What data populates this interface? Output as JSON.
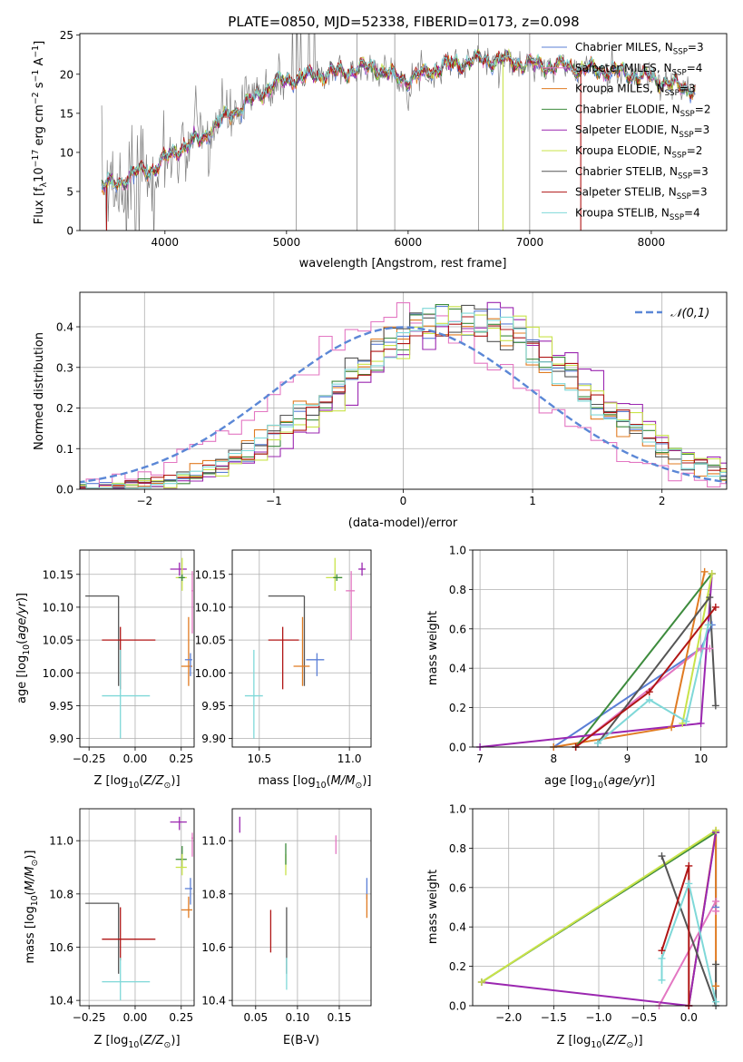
{
  "figure_title": "PLATE=0850, MJD=52338, FIBERID=0173, z=0.098",
  "colors": {
    "Chabrier MILES": "#5b7fd6",
    "Salpeter MILES": "#e377c2",
    "Kroupa MILES": "#e07b22",
    "Chabrier ELODIE": "#3d8b3d",
    "Salpeter ELODIE": "#9b27b0",
    "Kroupa ELODIE": "#c9e34a",
    "Chabrier STELIB": "#555555",
    "Salpeter STELIB": "#b01515",
    "Kroupa STELIB": "#7fd8d8",
    "data": "#7f7f7f",
    "normal": "#5b87d6"
  },
  "chart_data": [
    {
      "id": "spectrum",
      "type": "line",
      "title": "PLATE=0850, MJD=52338, FIBERID=0173, z=0.098",
      "xlabel": "wavelength [Angstrom, rest frame]",
      "ylabel": "Flux [f_λ 10^-17 erg cm^-2 s^-1 A^-1]",
      "xlim": [
        3300,
        8620
      ],
      "ylim": [
        0,
        25.2
      ],
      "xticks": [
        4000,
        5000,
        6000,
        7000,
        8000
      ],
      "yticks": [
        0,
        5,
        10,
        15,
        20,
        25
      ],
      "grid": false,
      "legend_position": "right",
      "legend": [
        "Chabrier MILES, N_SSP=3",
        "Salpeter MILES, N_SSP=4",
        "Kroupa MILES, N_SSP=3",
        "Chabrier ELODIE, N_SSP=2",
        "Salpeter ELODIE, N_SSP=3",
        "Kroupa ELODIE, N_SSP=2",
        "Chabrier STELIB, N_SSP=3",
        "Salpeter STELIB, N_SSP=3",
        "Kroupa STELIB, N_SSP=4"
      ],
      "continuum_points": [
        [
          3480,
          5.8
        ],
        [
          3600,
          6.0
        ],
        [
          3750,
          7.3
        ],
        [
          3900,
          7.8
        ],
        [
          4000,
          9.0
        ],
        [
          4100,
          10.3
        ],
        [
          4300,
          11.8
        ],
        [
          4500,
          14.5
        ],
        [
          4700,
          16.5
        ],
        [
          4900,
          18.8
        ],
        [
          5100,
          19.5
        ],
        [
          5300,
          20.0
        ],
        [
          5500,
          20.3
        ],
        [
          5700,
          21.0
        ],
        [
          5900,
          19.6
        ],
        [
          6000,
          19.3
        ],
        [
          6300,
          21.1
        ],
        [
          6600,
          21.9
        ],
        [
          6900,
          21.5
        ],
        [
          7100,
          21.2
        ],
        [
          7400,
          20.8
        ],
        [
          7700,
          20.3
        ],
        [
          8000,
          19.5
        ],
        [
          8200,
          18.5
        ],
        [
          8360,
          18.0
        ]
      ],
      "noise_spikes": [
        5080,
        5580,
        5890,
        6580,
        7000
      ],
      "model_dropouts": [
        [
          3520,
          "Salpeter STELIB"
        ],
        [
          6780,
          "Kroupa ELODIE"
        ],
        [
          7420,
          "Salpeter STELIB"
        ]
      ]
    },
    {
      "id": "residuals",
      "type": "histogram",
      "xlabel": "(data-model)/error",
      "ylabel": "Normed distribution",
      "xlim": [
        -2.5,
        2.5
      ],
      "ylim": [
        0,
        0.485
      ],
      "xticks": [
        -2,
        -1,
        0,
        1,
        2
      ],
      "yticks": [
        0.0,
        0.1,
        0.2,
        0.3,
        0.4
      ],
      "grid": true,
      "legend_position": "top-right",
      "legend": "𝒩(0,1)",
      "normal_curve": {
        "mean": 0,
        "sigma": 1
      }
    },
    {
      "id": "age-vs-Z",
      "type": "errorbar",
      "xlabel": "Z [log10(Z/Z⊙)]",
      "ylabel": "age  [log10(age/yr)]",
      "xlim": [
        -0.3,
        0.32
      ],
      "ylim": [
        9.887,
        10.187
      ],
      "xticks": [
        -0.25,
        0.0,
        0.25
      ],
      "xtick_labels": [
        "−0.25",
        "0.00",
        "0.25"
      ],
      "yticks": [
        9.9,
        9.95,
        10.0,
        10.05,
        10.1,
        10.15
      ],
      "grid": true,
      "points": [
        {
          "model": "Chabrier STELIB",
          "x": -0.09,
          "y": 10.117,
          "xlo": -0.27,
          "xhi": -0.09,
          "ylo": 9.98,
          "yhi": 10.117
        },
        {
          "model": "Salpeter STELIB",
          "x": -0.08,
          "y": 10.05,
          "xlo": -0.18,
          "xhi": 0.11,
          "ylo": 9.975,
          "yhi": 10.07
        },
        {
          "model": "Kroupa STELIB",
          "x": -0.08,
          "y": 9.965,
          "xlo": -0.18,
          "xhi": 0.08,
          "ylo": 9.9,
          "yhi": 10.035
        },
        {
          "model": "Salpeter ELODIE",
          "x": 0.24,
          "y": 10.158,
          "xlo": 0.19,
          "xhi": 0.28,
          "ylo": 10.148,
          "yhi": 10.168
        },
        {
          "model": "Kroupa ELODIE",
          "x": 0.255,
          "y": 10.145,
          "xlo": 0.22,
          "xhi": 0.28,
          "ylo": 10.125,
          "yhi": 10.175
        },
        {
          "model": "Chabrier ELODIE",
          "x": 0.255,
          "y": 10.145,
          "xlo": 0.235,
          "xhi": 0.27,
          "ylo": 10.14,
          "yhi": 10.15
        },
        {
          "model": "Salpeter MILES",
          "x": 0.31,
          "y": 10.125,
          "xlo": 0.305,
          "xhi": 0.315,
          "ylo": 10.06,
          "yhi": 10.155
        },
        {
          "model": "Kroupa MILES",
          "x": 0.29,
          "y": 10.01,
          "xlo": 0.25,
          "xhi": 0.31,
          "ylo": 9.98,
          "yhi": 10.085
        },
        {
          "model": "Chabrier MILES",
          "x": 0.3,
          "y": 10.02,
          "xlo": 0.27,
          "xhi": 0.31,
          "ylo": 9.995,
          "yhi": 10.03
        }
      ]
    },
    {
      "id": "age-vs-mass",
      "type": "errorbar",
      "xlabel": "mass [log10(M/M⊙)]",
      "ylabel": "",
      "xlim": [
        10.35,
        11.12
      ],
      "ylim": [
        9.887,
        10.187
      ],
      "xticks": [
        10.5,
        11.0
      ],
      "yticks": [
        9.9,
        9.95,
        10.0,
        10.05,
        10.1,
        10.15
      ],
      "grid": true,
      "points": [
        {
          "model": "Chabrier STELIB",
          "x": 10.75,
          "y": 10.117,
          "xlo": 10.55,
          "xhi": 10.75,
          "ylo": 9.98,
          "yhi": 10.117
        },
        {
          "model": "Salpeter STELIB",
          "x": 10.63,
          "y": 10.05,
          "xlo": 10.55,
          "xhi": 10.72,
          "ylo": 9.975,
          "yhi": 10.07
        },
        {
          "model": "Kroupa STELIB",
          "x": 10.47,
          "y": 9.965,
          "xlo": 10.42,
          "xhi": 10.52,
          "ylo": 9.9,
          "yhi": 10.035
        },
        {
          "model": "Kroupa MILES",
          "x": 10.74,
          "y": 10.01,
          "xlo": 10.69,
          "xhi": 10.78,
          "ylo": 9.98,
          "yhi": 10.085
        },
        {
          "model": "Chabrier MILES",
          "x": 10.82,
          "y": 10.02,
          "xlo": 10.76,
          "xhi": 10.86,
          "ylo": 9.995,
          "yhi": 10.03
        },
        {
          "model": "Kroupa ELODIE",
          "x": 10.92,
          "y": 10.145,
          "xlo": 10.87,
          "xhi": 10.96,
          "ylo": 10.125,
          "yhi": 10.175
        },
        {
          "model": "Chabrier ELODIE",
          "x": 10.93,
          "y": 10.145,
          "xlo": 10.91,
          "xhi": 10.96,
          "ylo": 10.14,
          "yhi": 10.15
        },
        {
          "model": "Salpeter MILES",
          "x": 11.01,
          "y": 10.125,
          "xlo": 10.98,
          "xhi": 11.03,
          "ylo": 10.05,
          "yhi": 10.155
        },
        {
          "model": "Salpeter ELODIE",
          "x": 11.07,
          "y": 10.158,
          "xlo": 11.05,
          "xhi": 11.09,
          "ylo": 10.148,
          "yhi": 10.168
        }
      ]
    },
    {
      "id": "mass-weight-vs-age",
      "type": "line",
      "xlabel": "age  [log10(age/yr)]",
      "ylabel": "mass weight",
      "xlim": [
        6.9,
        10.35
      ],
      "ylim": [
        0,
        1.0
      ],
      "xticks": [
        7,
        8,
        9,
        10
      ],
      "yticks": [
        0.0,
        0.2,
        0.4,
        0.6,
        0.8,
        1.0
      ],
      "grid": true,
      "series": [
        {
          "model": "Chabrier MILES",
          "points": [
            [
              8.0,
              0.0
            ],
            [
              10.0,
              0.5
            ],
            [
              10.15,
              0.62
            ]
          ]
        },
        {
          "model": "Salpeter MILES",
          "points": [
            [
              8.3,
              0.0
            ],
            [
              10.0,
              0.5
            ],
            [
              10.12,
              0.5
            ]
          ]
        },
        {
          "model": "Kroupa MILES",
          "points": [
            [
              8.0,
              0.0
            ],
            [
              9.6,
              0.1
            ],
            [
              10.05,
              0.89
            ]
          ]
        },
        {
          "model": "Chabrier ELODIE",
          "points": [
            [
              8.3,
              0.0
            ],
            [
              10.15,
              0.88
            ]
          ]
        },
        {
          "model": "Salpeter ELODIE",
          "points": [
            [
              7.0,
              0.0
            ],
            [
              10.0,
              0.12
            ],
            [
              10.15,
              0.88
            ]
          ]
        },
        {
          "model": "Kroupa ELODIE",
          "points": [
            [
              9.75,
              0.12
            ],
            [
              10.15,
              0.88
            ]
          ]
        },
        {
          "model": "Chabrier STELIB",
          "points": [
            [
              8.6,
              0.02
            ],
            [
              10.12,
              0.76
            ],
            [
              10.2,
              0.21
            ]
          ]
        },
        {
          "model": "Salpeter STELIB",
          "points": [
            [
              8.3,
              0.0
            ],
            [
              9.3,
              0.28
            ],
            [
              10.2,
              0.71
            ]
          ]
        },
        {
          "model": "Kroupa STELIB",
          "points": [
            [
              8.6,
              0.02
            ],
            [
              9.3,
              0.24
            ],
            [
              9.8,
              0.13
            ],
            [
              10.1,
              0.62
            ]
          ]
        }
      ]
    },
    {
      "id": "mass-vs-Z",
      "type": "errorbar",
      "xlabel": "Z [log10(Z/Z⊙)]",
      "ylabel": "mass [log10(M/M⊙)]",
      "xlim": [
        -0.3,
        0.32
      ],
      "ylim": [
        10.38,
        11.12
      ],
      "xticks": [
        -0.25,
        0.0,
        0.25
      ],
      "xtick_labels": [
        "−0.25",
        "0.00",
        "0.25"
      ],
      "yticks": [
        10.4,
        10.6,
        10.8,
        11.0
      ],
      "grid": true,
      "points": [
        {
          "model": "Chabrier STELIB",
          "x": -0.09,
          "y": 10.765,
          "xlo": -0.27,
          "xhi": -0.09,
          "ylo": 10.5,
          "yhi": 10.765
        },
        {
          "model": "Salpeter STELIB",
          "x": -0.08,
          "y": 10.63,
          "xlo": -0.18,
          "xhi": 0.11,
          "ylo": 10.55,
          "yhi": 10.75
        },
        {
          "model": "Kroupa STELIB",
          "x": -0.08,
          "y": 10.47,
          "xlo": -0.18,
          "xhi": 0.08,
          "ylo": 10.4,
          "yhi": 10.56
        },
        {
          "model": "Salpeter ELODIE",
          "x": 0.24,
          "y": 11.07,
          "xlo": 0.19,
          "xhi": 0.28,
          "ylo": 11.04,
          "yhi": 11.09
        },
        {
          "model": "Chabrier ELODIE",
          "x": 0.255,
          "y": 10.93,
          "xlo": 0.22,
          "xhi": 0.28,
          "ylo": 10.9,
          "yhi": 10.98
        },
        {
          "model": "Kroupa ELODIE",
          "x": 0.255,
          "y": 10.9,
          "xlo": 0.22,
          "xhi": 0.28,
          "ylo": 10.87,
          "yhi": 10.95
        },
        {
          "model": "Salpeter MILES",
          "x": 0.31,
          "y": 11.01,
          "xlo": 0.305,
          "xhi": 0.315,
          "ylo": 10.94,
          "yhi": 11.03
        },
        {
          "model": "Chabrier MILES",
          "x": 0.3,
          "y": 10.82,
          "xlo": 0.27,
          "xhi": 0.31,
          "ylo": 10.76,
          "yhi": 10.86
        },
        {
          "model": "Kroupa MILES",
          "x": 0.29,
          "y": 10.74,
          "xlo": 0.25,
          "xhi": 0.31,
          "ylo": 10.71,
          "yhi": 10.79
        }
      ]
    },
    {
      "id": "mass-vs-EBV",
      "type": "errorbar",
      "xlabel": "E(B-V)",
      "ylabel": "",
      "xlim": [
        0.022,
        0.188
      ],
      "ylim": [
        10.38,
        11.12
      ],
      "xticks": [
        0.05,
        0.1,
        0.15
      ],
      "yticks": [
        10.4,
        10.6,
        10.8,
        11.0
      ],
      "grid": true,
      "points": [
        {
          "model": "Salpeter ELODIE",
          "x": 0.031,
          "y": 11.06,
          "ylo": 11.03,
          "yhi": 11.09
        },
        {
          "model": "Salpeter STELIB",
          "x": 0.068,
          "y": 10.63,
          "ylo": 10.58,
          "yhi": 10.74
        },
        {
          "model": "Chabrier STELIB",
          "x": 0.087,
          "y": 10.6,
          "ylo": 10.5,
          "yhi": 10.75
        },
        {
          "model": "Kroupa STELIB",
          "x": 0.087,
          "y": 10.47,
          "ylo": 10.44,
          "yhi": 10.56
        },
        {
          "model": "Kroupa ELODIE",
          "x": 0.086,
          "y": 10.93,
          "ylo": 10.87,
          "yhi": 10.95
        },
        {
          "model": "Chabrier ELODIE",
          "x": 0.086,
          "y": 10.96,
          "ylo": 10.91,
          "yhi": 10.99
        },
        {
          "model": "Salpeter MILES",
          "x": 0.146,
          "y": 11.0,
          "ylo": 10.95,
          "yhi": 11.02
        },
        {
          "model": "Chabrier MILES",
          "x": 0.183,
          "y": 10.82,
          "ylo": 10.78,
          "yhi": 10.86
        },
        {
          "model": "Kroupa MILES",
          "x": 0.183,
          "y": 10.76,
          "ylo": 10.71,
          "yhi": 10.8
        }
      ]
    },
    {
      "id": "mass-weight-vs-Z",
      "type": "line",
      "xlabel": "Z [log10(Z/Z⊙)]",
      "ylabel": "mass weight",
      "xlim": [
        -2.4,
        0.42
      ],
      "ylim": [
        0,
        1.0
      ],
      "xticks": [
        -2.0,
        -1.5,
        -1.0,
        -0.5,
        0.0
      ],
      "xtick_labels": [
        "−2.0",
        "−1.5",
        "−1.0",
        "−0.5",
        "0.0"
      ],
      "yticks": [
        0.0,
        0.2,
        0.4,
        0.6,
        0.8,
        1.0
      ],
      "grid": true,
      "series": [
        {
          "model": "Chabrier MILES",
          "points": [
            [
              0.0,
              0.0
            ],
            [
              0.3,
              0.88
            ],
            [
              0.3,
              0.5
            ]
          ]
        },
        {
          "model": "Salpeter MILES",
          "points": [
            [
              -0.33,
              0.0
            ],
            [
              0.3,
              0.53
            ],
            [
              0.3,
              0.48
            ]
          ]
        },
        {
          "model": "Kroupa MILES",
          "points": [
            [
              0.0,
              0.0
            ],
            [
              0.3,
              0.89
            ],
            [
              0.3,
              0.1
            ]
          ]
        },
        {
          "model": "Chabrier ELODIE",
          "points": [
            [
              -2.3,
              0.12
            ],
            [
              0.3,
              0.88
            ]
          ]
        },
        {
          "model": "Salpeter ELODIE",
          "points": [
            [
              -2.3,
              0.12
            ],
            [
              0.0,
              0.0
            ],
            [
              0.3,
              0.88
            ]
          ]
        },
        {
          "model": "Kroupa ELODIE",
          "points": [
            [
              -2.3,
              0.12
            ],
            [
              0.3,
              0.89
            ]
          ]
        },
        {
          "model": "Chabrier STELIB",
          "points": [
            [
              -0.3,
              0.76
            ],
            [
              0.3,
              0.0
            ],
            [
              0.3,
              0.21
            ]
          ]
        },
        {
          "model": "Salpeter STELIB",
          "points": [
            [
              -0.3,
              0.28
            ],
            [
              0.0,
              0.71
            ],
            [
              0.0,
              0.0
            ]
          ]
        },
        {
          "model": "Kroupa STELIB",
          "points": [
            [
              -0.3,
              0.13
            ],
            [
              -0.3,
              0.24
            ],
            [
              0.0,
              0.62
            ],
            [
              0.3,
              0.02
            ]
          ]
        }
      ]
    }
  ]
}
